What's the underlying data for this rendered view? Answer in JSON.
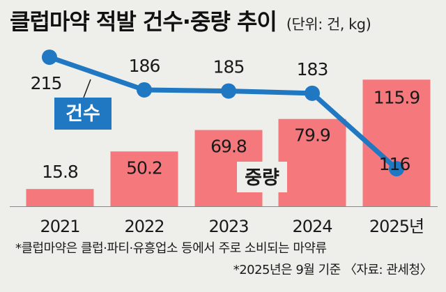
{
  "header": {
    "title": "클럽마약 적발 건수·중량 추이",
    "unit": "(단위: 건, kg)"
  },
  "chart_data": {
    "type": "bar+line",
    "categories": [
      "2021",
      "2022",
      "2023",
      "2024",
      "2025년"
    ],
    "series": [
      {
        "name": "중량",
        "type": "bar",
        "values": [
          15.8,
          50.2,
          69.8,
          79.9,
          115.9
        ],
        "labels": [
          "15.8",
          "50.2",
          "69.8",
          "79.9",
          "115.9"
        ],
        "color": "#f4787c"
      },
      {
        "name": "건수",
        "type": "line",
        "values": [
          215,
          186,
          185,
          183,
          116
        ],
        "labels": [
          "215",
          "186",
          "185",
          "183",
          "116"
        ],
        "color": "#1f78c1"
      }
    ],
    "bar_ylim": [
      0,
      125
    ],
    "line_ylim": [
      100,
      220
    ],
    "grid": false
  },
  "footnotes": {
    "line1": "*클럽마약은 클럽·파티·유흥업소 등에서 주로 소비되는 마약류",
    "line2": "*2025년은 9월 기준 〈자료: 관세청〉"
  },
  "colors": {
    "background": "#eeeeea",
    "bar": "#f4787c",
    "line": "#1f78c1",
    "legend_box": "#1f78c1",
    "legend_text": "#ffffff"
  }
}
